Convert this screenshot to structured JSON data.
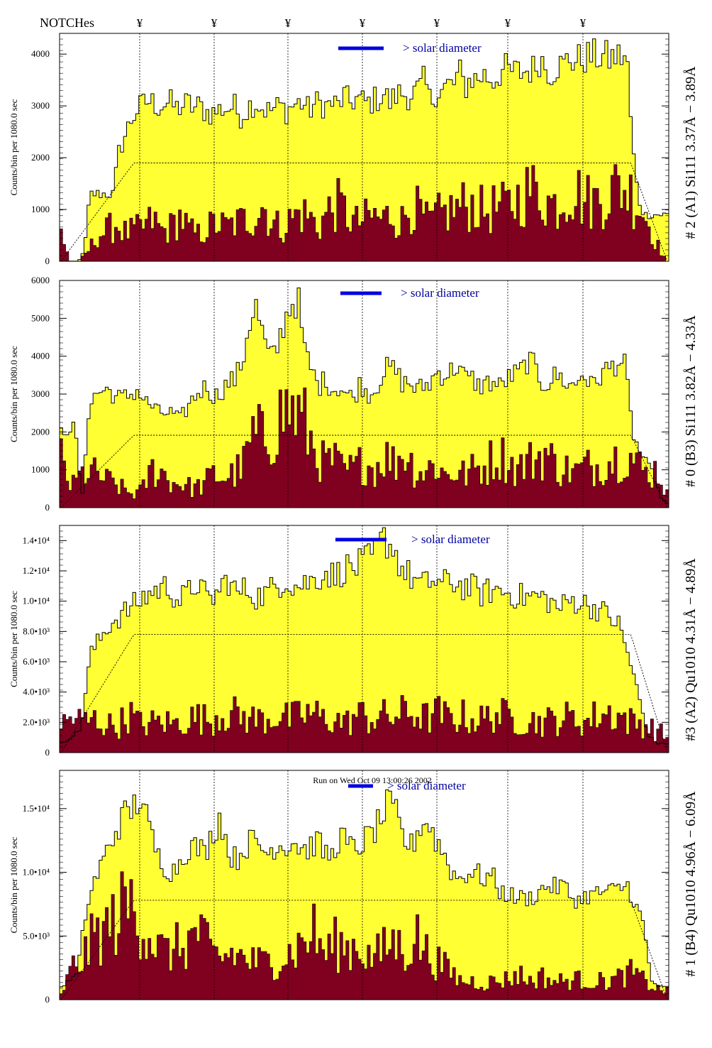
{
  "header": {
    "notches_label": "NOTCHes",
    "notch_symbol": "¥"
  },
  "footer": {
    "run_label": "Run on Wed Oct 09 13:00:26 2002"
  },
  "colors": {
    "yellow_fill": "#FFFF33",
    "dark_fill": "#800020",
    "solar_bar": "#0000E0",
    "solar_text": "#0000A0",
    "axis": "#000000"
  },
  "chart_data": [
    {
      "type": "area",
      "channel_title": "# 2 (A1) Si111  3.37Å − 3.89Å",
      "ylabel": "Counts/bin per   1080.0 sec",
      "annotation": "> solar diameter",
      "ylim": [
        0,
        4400
      ],
      "yticks": [
        0,
        1000,
        2000,
        3000,
        4000
      ],
      "ytick_labels": [
        "0",
        "1000",
        "2000",
        "3000",
        "4000"
      ],
      "nbins": 200,
      "total_envelope": [
        0,
        2,
        3,
        3,
        200,
        1300,
        1300,
        1300,
        1300,
        1300,
        2100,
        2400,
        2700,
        2900,
        3000,
        3100,
        3050,
        3000,
        3050,
        3050,
        2950,
        3000,
        3050,
        2950,
        3000,
        2900,
        2850,
        2900,
        2950,
        2950,
        3000,
        2800,
        2900,
        3050,
        3050,
        2950,
        2900,
        2950,
        3000,
        2900,
        3000,
        3050,
        3050,
        2900,
        3050,
        3050,
        3000,
        3050,
        3000,
        3200,
        3050,
        3150,
        3100,
        3050,
        3100,
        3150,
        3250,
        3050,
        3200,
        3250,
        3200,
        3250,
        3300,
        3500,
        3050,
        3300,
        3300,
        3400,
        3400,
        3650,
        3350,
        3550,
        3500,
        3600,
        3550,
        3500,
        3650,
        3700,
        3650,
        3650,
        3650,
        3700,
        3700,
        3950,
        3750,
        3650,
        3800,
        3750,
        3950,
        3850,
        3900,
        3950,
        3950,
        3950,
        3950,
        3900,
        3950,
        3950,
        3950,
        2200,
        1200,
        900,
        900,
        900,
        900,
        900
      ],
      "dark_peaks": [
        800,
        0,
        0,
        300,
        700,
        800,
        1000,
        750,
        800,
        900,
        1100,
        800,
        900,
        1200,
        800,
        700,
        900,
        1000,
        900,
        1000,
        1100,
        1200,
        1500,
        1000,
        900,
        1100,
        1300,
        1200,
        900,
        1300,
        1500,
        1300,
        1000,
        1100,
        1200,
        1100,
        1300,
        1000,
        1500,
        1300,
        1000,
        1200,
        1300,
        1400,
        1500,
        1500,
        1300,
        1400,
        1400,
        1500,
        1700,
        1900,
        1800,
        1600,
        1500,
        1800,
        1900,
        1600,
        1600,
        1700,
        1900,
        2000,
        1800,
        1500,
        1000,
        400,
        0
      ]
    },
    {
      "type": "area",
      "channel_title": "# 0 (B3) Si111  3.82Å − 4.33Å",
      "ylabel": "Counts/bin per   1080.0 sec",
      "annotation": "> solar diameter",
      "ylim": [
        0,
        6000
      ],
      "yticks": [
        0,
        1000,
        2000,
        3000,
        4000,
        5000,
        6000
      ],
      "ytick_labels": [
        "0",
        "1000",
        "2000",
        "3000",
        "4000",
        "5000",
        "6000"
      ],
      "nbins": 200,
      "total_envelope": [
        2000,
        2100,
        2100,
        200,
        2700,
        3000,
        3100,
        3100,
        2900,
        2900,
        3000,
        3100,
        2800,
        2700,
        2500,
        2500,
        2500,
        2300,
        2600,
        2900,
        3100,
        3200,
        2900,
        3100,
        3300,
        3400,
        3800,
        4900,
        5300,
        4500,
        3900,
        4200,
        4900,
        5400,
        5500,
        4100,
        3600,
        3200,
        3400,
        3100,
        3200,
        3000,
        2900,
        3300,
        3000,
        3100,
        3500,
        3700,
        3600,
        3300,
        3300,
        3100,
        3200,
        3300,
        3600,
        3500,
        3600,
        3800,
        3400,
        3400,
        3200,
        3300,
        3300,
        3200,
        3400,
        3500,
        3600,
        3900,
        3700,
        3300,
        3300,
        3500,
        3400,
        3200,
        3300,
        3600,
        3200,
        3400,
        3600,
        3700,
        3900,
        3700,
        2000,
        1500,
        1200,
        900,
        300,
        100
      ],
      "dark_peaks": [
        1800,
        700,
        1200,
        1300,
        1100,
        900,
        700,
        500,
        600,
        1400,
        1300,
        900,
        900,
        700,
        800,
        1200,
        1100,
        1200,
        1500,
        2600,
        2500,
        2800,
        3500,
        3500,
        3100,
        2200,
        1600,
        1700,
        1300,
        1400,
        1700,
        1400,
        1900,
        1600,
        2100,
        1400,
        1300,
        1600,
        1200,
        1300,
        1200,
        1400,
        1500,
        1900,
        1800,
        1400,
        1600,
        1800,
        2000,
        1500,
        1400,
        1300,
        1500,
        1500,
        1700,
        1800,
        2000,
        1600,
        1200,
        1400,
        500
      ]
    },
    {
      "type": "area",
      "channel_title": "#3 (A2) Qu1010  4.31Å − 4.89Å",
      "ylabel": "Counts/bin per   1080.0 sec",
      "annotation": "> solar diameter",
      "ylim": [
        0,
        15000
      ],
      "yticks": [
        0,
        2000,
        4000,
        6000,
        8000,
        10000,
        12000,
        14000
      ],
      "ytick_labels": [
        "0",
        "2.0•10³",
        "4.0•10³",
        "6.0•10³",
        "8.0•10³",
        "1.0•10⁴",
        "1.2•10⁴",
        "1.4•10⁴"
      ],
      "nbins": 200,
      "total_envelope": [
        600,
        1000,
        1500,
        6500,
        7500,
        8500,
        9000,
        9500,
        10000,
        10500,
        10800,
        11000,
        10000,
        10500,
        11300,
        10000,
        10500,
        11500,
        10500,
        10800,
        10300,
        10500,
        11000,
        11500,
        11000,
        11200,
        11400,
        12000,
        11600,
        12200,
        12200,
        12500,
        13000,
        14200,
        13500,
        12000,
        11500,
        11000,
        11400,
        11100,
        11300,
        11000,
        10900,
        10500,
        10700,
        10700,
        10500,
        10300,
        10300,
        10300,
        10000,
        9500,
        10000,
        10000,
        9700,
        9500,
        9000,
        8500,
        6500,
        4000,
        1200,
        600,
        600
      ],
      "dark_peaks": [
        2500,
        3200,
        2800,
        3000,
        2500,
        2500,
        3500,
        2500,
        2700,
        2800,
        2600,
        3000,
        3200,
        2900,
        3600,
        3500,
        3200,
        3000,
        3100,
        3400,
        3000,
        3400,
        3600,
        3000,
        3000,
        2700,
        3500,
        3000,
        3300,
        3200,
        3600,
        3500,
        3100,
        3600,
        3000,
        3300,
        3000,
        3000,
        3600,
        3200,
        3000,
        2900,
        2800,
        2900,
        3200,
        3000,
        2800,
        3500,
        3600,
        3300,
        2700,
        2600,
        2000,
        1500
      ]
    },
    {
      "type": "area",
      "channel_title": "# 1 (B4) Qu1010 4.96Å − 6.09Å",
      "ylabel": "Counts/bin per   1080.0 sec",
      "annotation": "> solar diameter",
      "ylim": [
        0,
        18000
      ],
      "yticks": [
        0,
        5000,
        10000,
        15000
      ],
      "ytick_labels": [
        "0",
        "5.0•10³",
        "1.0•10⁴",
        "1.5•10⁴"
      ],
      "nbins": 200,
      "total_envelope": [
        1000,
        1500,
        2000,
        6500,
        9000,
        10500,
        12000,
        13500,
        14500,
        15000,
        16000,
        13500,
        11500,
        10500,
        10000,
        11000,
        12000,
        12000,
        11500,
        13000,
        14500,
        11500,
        11000,
        12000,
        12500,
        12000,
        11500,
        12300,
        12000,
        12500,
        12000,
        11800,
        12500,
        11500,
        11300,
        13000,
        12000,
        11800,
        12500,
        13000,
        14000,
        15300,
        14500,
        12500,
        12000,
        13700,
        14000,
        12500,
        11500,
        10000,
        9500,
        10000,
        10000,
        9500,
        9800,
        8500,
        8300,
        8000,
        8000,
        8000,
        8500,
        9000,
        8800,
        9000,
        8000,
        7800,
        8200,
        8300,
        8500,
        8500,
        8700,
        9000,
        7500,
        6000,
        1500,
        1000,
        1000
      ],
      "dark_peaks": [
        500,
        3500,
        4500,
        7000,
        7500,
        9000,
        10500,
        8500,
        6500,
        5000,
        5500,
        6000,
        7500,
        5000,
        4500,
        5000,
        4500,
        4000,
        4000,
        4500,
        5000,
        6000,
        7500,
        5000,
        6000,
        5500,
        6000,
        4500,
        5000,
        6500,
        5000,
        7000,
        5000,
        4000,
        3000,
        2000,
        2000,
        1800,
        2000,
        2200,
        2800,
        2000,
        2500,
        2000,
        2000,
        2200,
        2000,
        2000,
        2000,
        2500,
        3000,
        2000,
        1200,
        900
      ]
    }
  ]
}
